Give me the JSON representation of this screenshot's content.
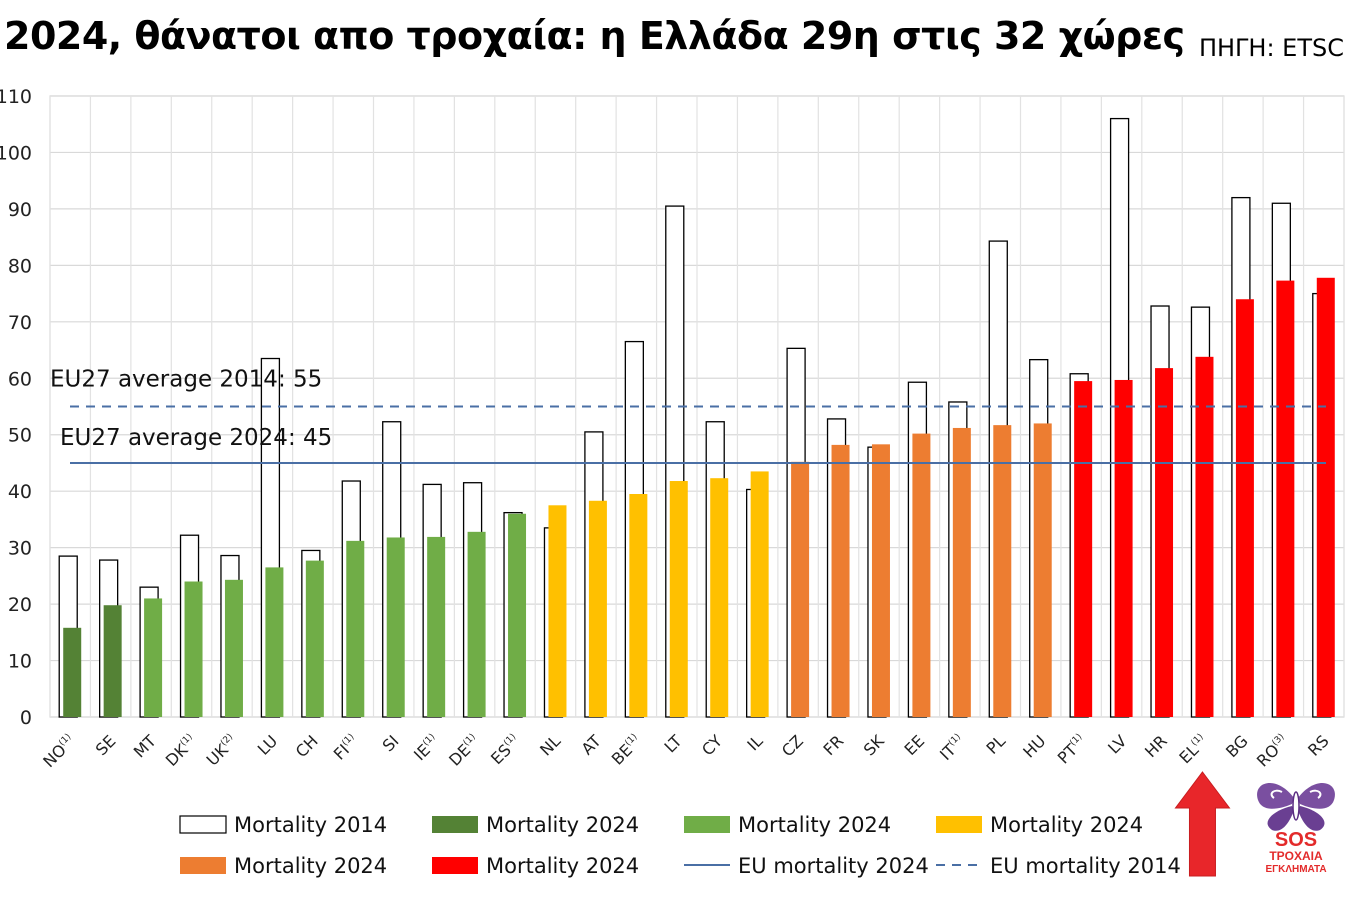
{
  "title": "2024, θάνατοι απο τροχαία: η Ελλάδα 29η στις 32 χώρες",
  "source": "ΠΗΓΗ: ETSC",
  "chart_data": {
    "type": "bar",
    "ylim": [
      0,
      110
    ],
    "yticks": [
      0,
      10,
      20,
      30,
      40,
      50,
      60,
      70,
      80,
      90,
      100,
      110
    ],
    "grid": true,
    "categories": [
      "NO",
      "SE",
      "MT",
      "DK",
      "UK",
      "LU",
      "CH",
      "FI",
      "SI",
      "IE",
      "DE",
      "ES",
      "NL",
      "AT",
      "BE",
      "LT",
      "CY",
      "IL",
      "CZ",
      "FR",
      "SK",
      "EE",
      "IT",
      "PL",
      "HU",
      "PT",
      "LV",
      "HR",
      "EL",
      "BG",
      "RO",
      "RS"
    ],
    "footnotes": [
      "(1)",
      "",
      "",
      "(1)",
      "(2)",
      "",
      "",
      "(1)",
      "",
      "(1)",
      "(1)",
      "(1)",
      "",
      "",
      "(1)",
      "",
      "",
      "",
      "",
      "",
      "",
      "",
      "(1)",
      "",
      "",
      "(1)",
      "",
      "",
      "(1)",
      "",
      "(3)",
      ""
    ],
    "series": [
      {
        "name": "Mortality 2014",
        "style": "outline",
        "values": [
          28.5,
          27.8,
          23,
          32.2,
          28.6,
          63.5,
          29.5,
          41.8,
          52.3,
          41.2,
          41.5,
          36.2,
          33.5,
          50.5,
          66.5,
          90.5,
          52.3,
          40.3,
          65.3,
          52.8,
          47.8,
          59.3,
          55.8,
          84.3,
          63.3,
          60.8,
          106,
          72.8,
          72.6,
          92,
          91,
          75
        ]
      },
      {
        "name": "Mortality 2024",
        "style": "filled",
        "values": [
          15.8,
          19.8,
          21,
          24,
          24.3,
          26.5,
          27.7,
          31.2,
          31.8,
          31.9,
          32.8,
          36,
          37.5,
          38.3,
          39.5,
          41.8,
          42.3,
          43.5,
          45.2,
          48.2,
          48.3,
          50.2,
          51.2,
          51.7,
          52,
          59.5,
          59.7,
          61.8,
          63.8,
          74,
          77.3,
          77.8
        ],
        "color_groups": [
          "dark-green",
          "dark-green",
          "green",
          "green",
          "green",
          "green",
          "green",
          "green",
          "green",
          "green",
          "green",
          "green",
          "yellow",
          "yellow",
          "yellow",
          "yellow",
          "yellow",
          "yellow",
          "orange",
          "orange",
          "orange",
          "orange",
          "orange",
          "orange",
          "orange",
          "red",
          "red",
          "red",
          "red",
          "red",
          "red",
          "red"
        ]
      }
    ],
    "colors": {
      "dark-green": "#548235",
      "green": "#70ad47",
      "yellow": "#ffc000",
      "orange": "#ed7d31",
      "red": "#ff0000",
      "eu_line": "#4a6fa5"
    },
    "reference_lines": [
      {
        "name": "EU mortality 2024",
        "value": 45,
        "style": "solid",
        "label": "EU27 average 2024: 45"
      },
      {
        "name": "EU mortality 2014",
        "value": 55,
        "style": "dashed",
        "label": "EU27 average 2014: 55"
      }
    ],
    "legend": {
      "placement": "bottom",
      "items": [
        {
          "label": "Mortality 2014",
          "kind": "outline"
        },
        {
          "label": "Mortality 2024",
          "kind": "dark-green"
        },
        {
          "label": "Mortality 2024",
          "kind": "green"
        },
        {
          "label": "Mortality 2024",
          "kind": "yellow"
        },
        {
          "label": "Mortality 2024",
          "kind": "orange"
        },
        {
          "label": "Mortality 2024",
          "kind": "red"
        },
        {
          "label": "EU mortality 2024",
          "kind": "line-solid"
        },
        {
          "label": "EU mortality 2014",
          "kind": "line-dashed"
        }
      ]
    },
    "highlight": {
      "category": "EL",
      "marker": "up-arrow",
      "color": "#e8262a"
    }
  },
  "logo": {
    "line1": "SOS",
    "line2": "ΤΡΟΧΑΙΑ",
    "line3": "ΕΓΚΛΗΜΑΤΑ"
  }
}
